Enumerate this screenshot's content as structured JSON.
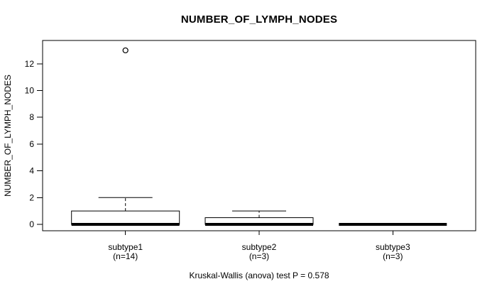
{
  "chart_data": {
    "type": "boxplot",
    "title": "NUMBER_OF_LYMPH_NODES",
    "ylabel": "NUMBER_OF_LYMPH_NODES",
    "xlabel": "",
    "yticks": [
      0,
      2,
      4,
      6,
      8,
      10,
      12
    ],
    "ylim": [
      -0.5,
      13.8
    ],
    "grid": false,
    "footnote": "Kruskal-Wallis (anova) test P = 0.578",
    "p_value": "0.578",
    "box_stroke_color": "#000000",
    "box_fill_color": "#ffffff",
    "categories": [
      {
        "label": "subtype1",
        "sublabel": "(n=14)",
        "n": 14,
        "stats": {
          "lower_whisker": 0,
          "q1": 0,
          "median": 0,
          "q3": 1,
          "upper_whisker": 2
        },
        "outliers": [
          13
        ]
      },
      {
        "label": "subtype2",
        "sublabel": "(n=3)",
        "n": 3,
        "stats": {
          "lower_whisker": 0,
          "q1": 0,
          "median": 0,
          "q3": 0.5,
          "upper_whisker": 1
        },
        "outliers": []
      },
      {
        "label": "subtype3",
        "sublabel": "(n=3)",
        "n": 3,
        "stats": {
          "lower_whisker": 0,
          "q1": 0,
          "median": 0,
          "q3": 0,
          "upper_whisker": 0
        },
        "outliers": []
      }
    ]
  }
}
